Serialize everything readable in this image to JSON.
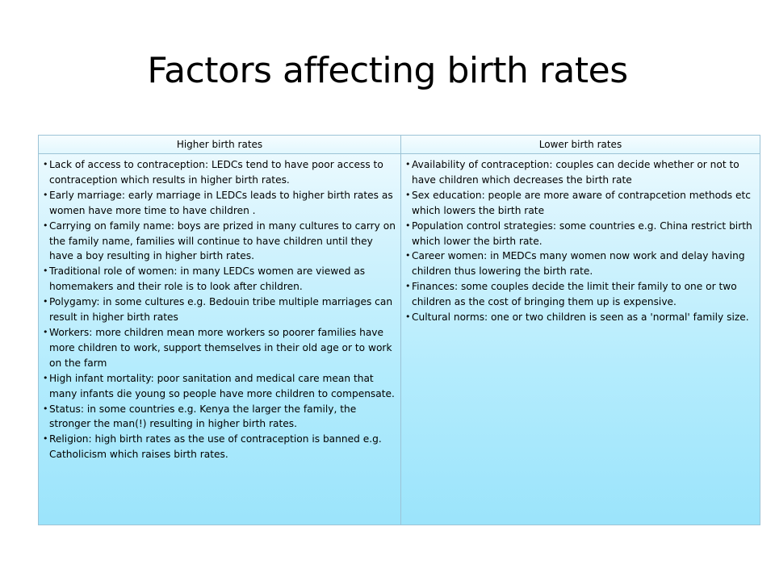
{
  "slide": {
    "title": "Factors affecting birth rates"
  },
  "table": {
    "headers": [
      "Higher birth rates",
      "Lower birth rates"
    ],
    "higher": [
      "Lack of access to contraception: LEDCs tend to have poor access to contraception which results in higher birth rates.",
      "Early marriage: early marriage in LEDCs leads to higher birth rates as women have more time to have children .",
      "Carrying on family name: boys are prized in many cultures to carry on the family name, families will continue to have children until they have a boy resulting in higher birth rates.",
      "Traditional role of women: in many LEDCs women are viewed as homemakers and their role is to look after children.",
      "Polygamy: in some cultures e.g. Bedouin tribe multiple marriages can result in higher birth rates",
      "Workers: more children mean more workers so poorer families have more children to work, support themselves in their old age or to work on the farm",
      "High infant mortality: poor sanitation and medical care mean that many infants die young so people have more children to compensate.",
      "Status: in some countries e.g. Kenya the larger the family, the stronger the man(!) resulting in higher birth rates.",
      "Religion: high birth rates as the use of contraception is banned e.g. Catholicism which raises birth rates."
    ],
    "lower": [
      "Availability of contraception: couples can decide whether or not to have children which decreases the birth rate",
      "Sex education: people are more aware of contrapcetion methods etc which lowers the birth rate",
      "Population control strategies: some countries e.g. China restrict birth which lower the birth rate.",
      "Career women: in MEDCs many women now work and delay having children thus lowering the birth rate.",
      "Finances: some couples decide the limit their family to one or two children as the cost of bringing them up is expensive.",
      "Cultural norms: one or two children is seen as a 'normal' family size."
    ]
  }
}
